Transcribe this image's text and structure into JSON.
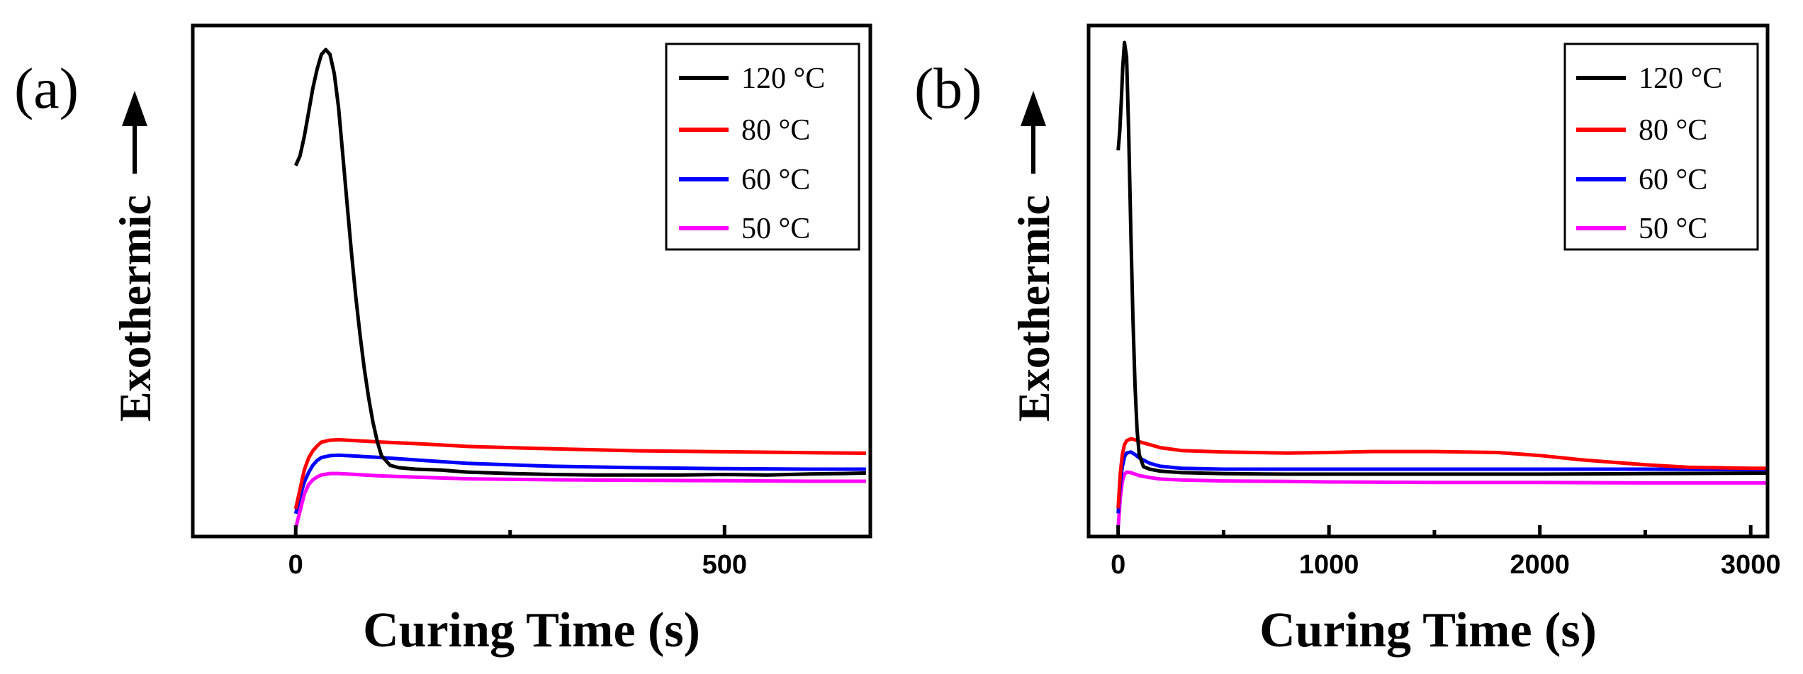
{
  "chart_data": [
    {
      "type": "line",
      "panel_label": "(a)",
      "xlabel": "Curing Time (s)",
      "ylabel": "Exothermic",
      "xlim": [
        -120,
        670
      ],
      "ylim": [
        0,
        100
      ],
      "xticks": [
        0,
        500
      ],
      "xticks_minor": [
        250
      ],
      "yticks": [],
      "legend_position": "top-right",
      "series": [
        {
          "name": "120 °C",
          "color": "#000000",
          "x": [
            0,
            5,
            10,
            15,
            20,
            25,
            30,
            35,
            40,
            45,
            50,
            55,
            60,
            65,
            70,
            75,
            80,
            85,
            90,
            95,
            100,
            110,
            120,
            140,
            170,
            200,
            250,
            300,
            350,
            400,
            450,
            500,
            550,
            600,
            640,
            665
          ],
          "y": [
            76,
            78,
            82,
            87,
            92,
            96,
            99,
            100,
            99,
            95,
            88,
            78,
            68,
            58,
            49,
            41,
            34,
            28,
            23,
            19,
            16,
            14,
            13.5,
            13.2,
            13,
            12.6,
            12.3,
            12.1,
            12,
            12,
            12,
            12.1,
            12,
            12.2,
            12.3,
            12.4
          ]
        },
        {
          "name": "80 °C",
          "color": "#ff0000",
          "x": [
            0,
            5,
            10,
            15,
            20,
            25,
            30,
            40,
            50,
            60,
            80,
            100,
            150,
            200,
            300,
            400,
            500,
            600,
            665
          ],
          "y": [
            5,
            9,
            13,
            15.5,
            17,
            18,
            18.8,
            19.2,
            19.3,
            19.2,
            19,
            18.8,
            18.4,
            17.9,
            17.4,
            17,
            16.8,
            16.6,
            16.5
          ]
        },
        {
          "name": "60 °C",
          "color": "#0000ff",
          "x": [
            0,
            5,
            10,
            15,
            20,
            25,
            30,
            40,
            50,
            60,
            80,
            100,
            150,
            200,
            300,
            400,
            500,
            600,
            665
          ],
          "y": [
            4,
            7.5,
            10.5,
            12.5,
            14,
            15,
            15.6,
            16,
            16.1,
            16,
            15.8,
            15.6,
            15,
            14.4,
            13.8,
            13.5,
            13.3,
            13.2,
            13.2
          ]
        },
        {
          "name": "50 °C",
          "color": "#ff00ff",
          "x": [
            0,
            5,
            10,
            15,
            20,
            25,
            30,
            40,
            50,
            60,
            80,
            100,
            150,
            200,
            300,
            400,
            500,
            600,
            665
          ],
          "y": [
            1,
            4.5,
            8,
            10,
            11,
            11.6,
            12,
            12.3,
            12.3,
            12.2,
            12,
            11.8,
            11.5,
            11.2,
            11,
            10.9,
            10.8,
            10.7,
            10.7
          ]
        }
      ]
    },
    {
      "type": "line",
      "panel_label": "(b)",
      "xlabel": "Curing Time (s)",
      "ylabel": "Exothermic",
      "xlim": [
        -140,
        3080
      ],
      "ylim": [
        0,
        100
      ],
      "xticks": [
        0,
        1000,
        2000,
        3000
      ],
      "xticks_minor": [
        500,
        1500,
        2500
      ],
      "yticks": [],
      "legend_position": "top-right",
      "series": [
        {
          "name": "120 °C",
          "color": "#000000",
          "x": [
            0,
            8,
            15,
            22,
            30,
            40,
            50,
            60,
            70,
            80,
            90,
            100,
            120,
            150,
            200,
            300,
            500,
            800,
            1200,
            1500,
            2000,
            2500,
            3000,
            3080
          ],
          "y": [
            78,
            82,
            88,
            95,
            100,
            97,
            82,
            62,
            44,
            30,
            21,
            16,
            13.5,
            13,
            12.6,
            12.3,
            12.1,
            12,
            12,
            12,
            12,
            12.1,
            12.2,
            12.2
          ]
        },
        {
          "name": "80 °C",
          "color": "#ff0000",
          "x": [
            0,
            10,
            20,
            30,
            40,
            60,
            80,
            100,
            150,
            200,
            300,
            500,
            800,
            1000,
            1200,
            1500,
            1800,
            2000,
            2200,
            2500,
            2700,
            3000,
            3080
          ],
          "y": [
            5,
            12,
            16,
            18,
            18.8,
            19.2,
            19,
            18.6,
            18,
            17.4,
            16.8,
            16.5,
            16.3,
            16.4,
            16.6,
            16.6,
            16.4,
            15.8,
            14.9,
            13.9,
            13.4,
            13.2,
            13.2
          ]
        },
        {
          "name": "60 °C",
          "color": "#0000ff",
          "x": [
            0,
            10,
            20,
            30,
            40,
            60,
            80,
            100,
            150,
            200,
            300,
            500,
            800,
            1000,
            1500,
            2000,
            2500,
            3000,
            3080
          ],
          "y": [
            4,
            10,
            13.5,
            15.5,
            16.3,
            16.5,
            16,
            15.3,
            14.2,
            13.6,
            13.2,
            13,
            13,
            13,
            13,
            13,
            13,
            12.9,
            12.9
          ]
        },
        {
          "name": "50 °C",
          "color": "#ff00ff",
          "x": [
            0,
            10,
            20,
            30,
            40,
            60,
            80,
            100,
            150,
            200,
            300,
            500,
            800,
            1000,
            1500,
            2000,
            2500,
            3000,
            3080
          ],
          "y": [
            1,
            7,
            10.5,
            12,
            12.4,
            12.3,
            12,
            11.7,
            11.3,
            11,
            10.8,
            10.6,
            10.5,
            10.4,
            10.3,
            10.3,
            10.2,
            10.2,
            10.2
          ]
        }
      ]
    }
  ]
}
